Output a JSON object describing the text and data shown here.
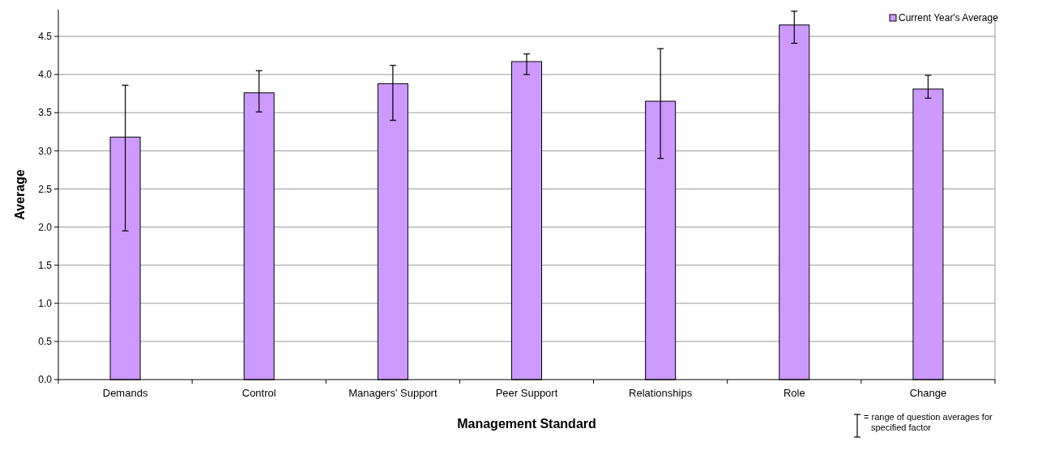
{
  "chart_data": {
    "type": "bar",
    "xlabel": "Management Standard",
    "ylabel": "Average",
    "categories": [
      "Demands",
      "Control",
      "Managers' Support",
      "Peer Support",
      "Relationships",
      "Role",
      "Change"
    ],
    "series": [
      {
        "name": "Current Year's Average",
        "color": "#cc99ff",
        "values": [
          3.18,
          3.76,
          3.88,
          4.17,
          3.65,
          4.65,
          3.81
        ],
        "errors": [
          [
            1.95,
            3.86
          ],
          [
            3.51,
            4.05
          ],
          [
            3.4,
            4.12
          ],
          [
            4.0,
            4.27
          ],
          [
            2.9,
            4.34
          ],
          [
            4.41,
            4.83
          ],
          [
            3.69,
            3.99
          ]
        ]
      }
    ],
    "ylim": [
      0,
      4.85
    ],
    "yticks": [
      {
        "value": 0,
        "label": "0.0"
      },
      {
        "value": 0.5,
        "label": "0.5"
      },
      {
        "value": 1,
        "label": "1.0"
      },
      {
        "value": 1.5,
        "label": "1.5"
      },
      {
        "value": 2,
        "label": "2.0"
      },
      {
        "value": 2.5,
        "label": "2.5"
      },
      {
        "value": 3,
        "label": "3.0"
      },
      {
        "value": 3.5,
        "label": "3.5"
      },
      {
        "value": 4,
        "label": "4.0"
      },
      {
        "value": 4.5,
        "label": "4.5"
      }
    ],
    "grid": "y",
    "legend": "top right",
    "annotations": [
      "= range of question averages for specified factor"
    ]
  }
}
